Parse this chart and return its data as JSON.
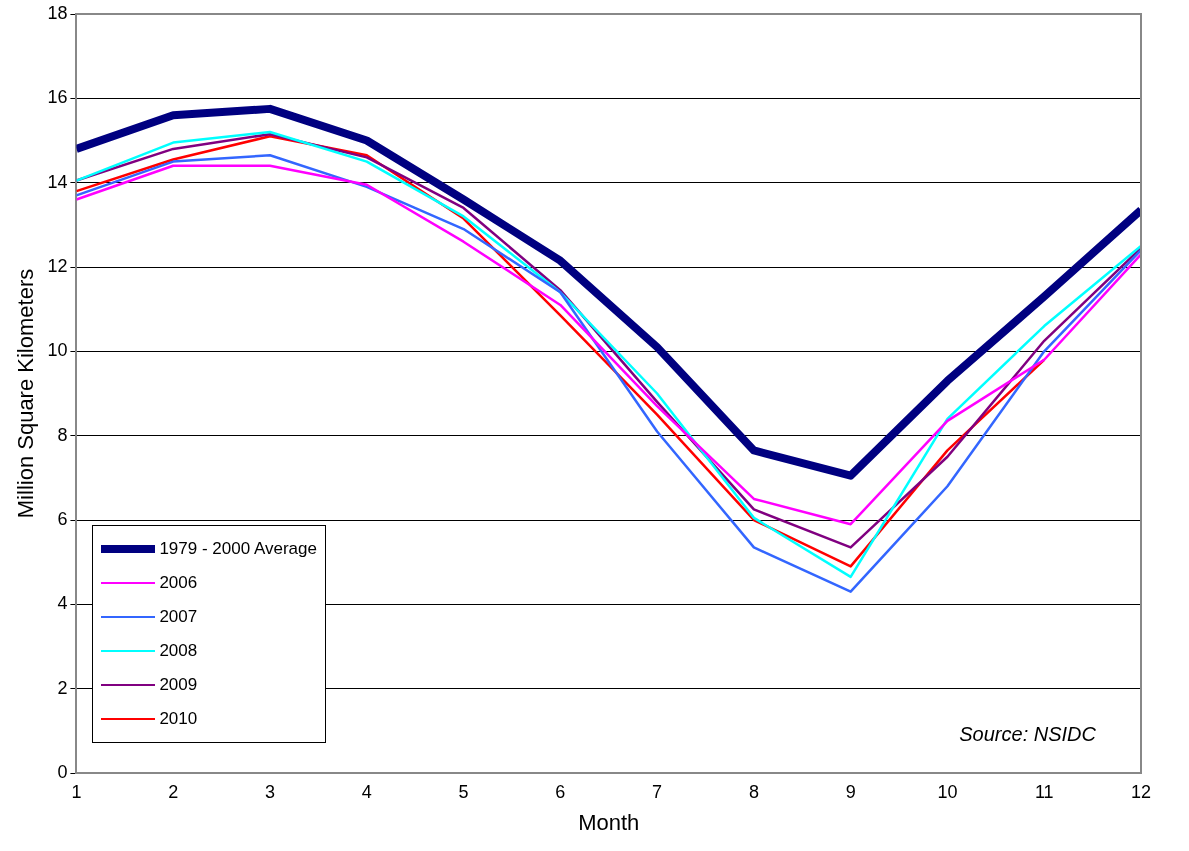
{
  "chart_data": {
    "type": "line",
    "xlabel": "Month",
    "ylabel": "Million Square Kilometers",
    "x": [
      1,
      2,
      3,
      4,
      5,
      6,
      7,
      8,
      9,
      10,
      11,
      12
    ],
    "xlim": [
      1,
      12
    ],
    "xticks": [
      1,
      2,
      3,
      4,
      5,
      6,
      7,
      8,
      9,
      10,
      11,
      12
    ],
    "ylim": [
      0,
      18
    ],
    "yticks": [
      0,
      2,
      4,
      6,
      8,
      10,
      12,
      14,
      16,
      18
    ],
    "grid": "y",
    "legend": "bottom left",
    "marker": "none",
    "line_style": "solid",
    "annotations": [
      "Source: NSIDC"
    ],
    "series": [
      {
        "name": "1979 - 2000 Average",
        "color": "#000080",
        "values": [
          14.8,
          15.6,
          15.75,
          15.0,
          13.6,
          12.15,
          10.1,
          7.65,
          7.05,
          9.3,
          11.3,
          13.35
        ]
      },
      {
        "name": "2006",
        "color": "#ff00ff",
        "values": [
          13.6,
          14.4,
          14.4,
          13.95,
          12.6,
          11.1,
          8.7,
          6.5,
          5.9,
          8.35,
          9.8,
          12.3
        ]
      },
      {
        "name": "2007",
        "color": "#3366ff",
        "values": [
          13.7,
          14.5,
          14.65,
          13.9,
          12.9,
          11.4,
          8.1,
          5.35,
          4.3,
          6.8,
          10.0,
          12.4
        ]
      },
      {
        "name": "2008",
        "color": "#00ffff",
        "values": [
          14.05,
          14.95,
          15.2,
          14.5,
          13.2,
          11.4,
          9.0,
          6.05,
          4.65,
          8.4,
          10.6,
          12.5
        ]
      },
      {
        "name": "2009",
        "color": "#800080",
        "values": [
          14.05,
          14.8,
          15.15,
          14.6,
          13.4,
          11.45,
          8.8,
          6.25,
          5.35,
          7.5,
          10.25,
          12.45
        ]
      },
      {
        "name": "2010",
        "color": "#ff0000",
        "values": [
          13.8,
          14.55,
          15.1,
          14.65,
          13.15,
          10.85,
          8.5,
          6.0,
          4.9,
          7.65,
          9.8,
          null
        ]
      }
    ]
  }
}
